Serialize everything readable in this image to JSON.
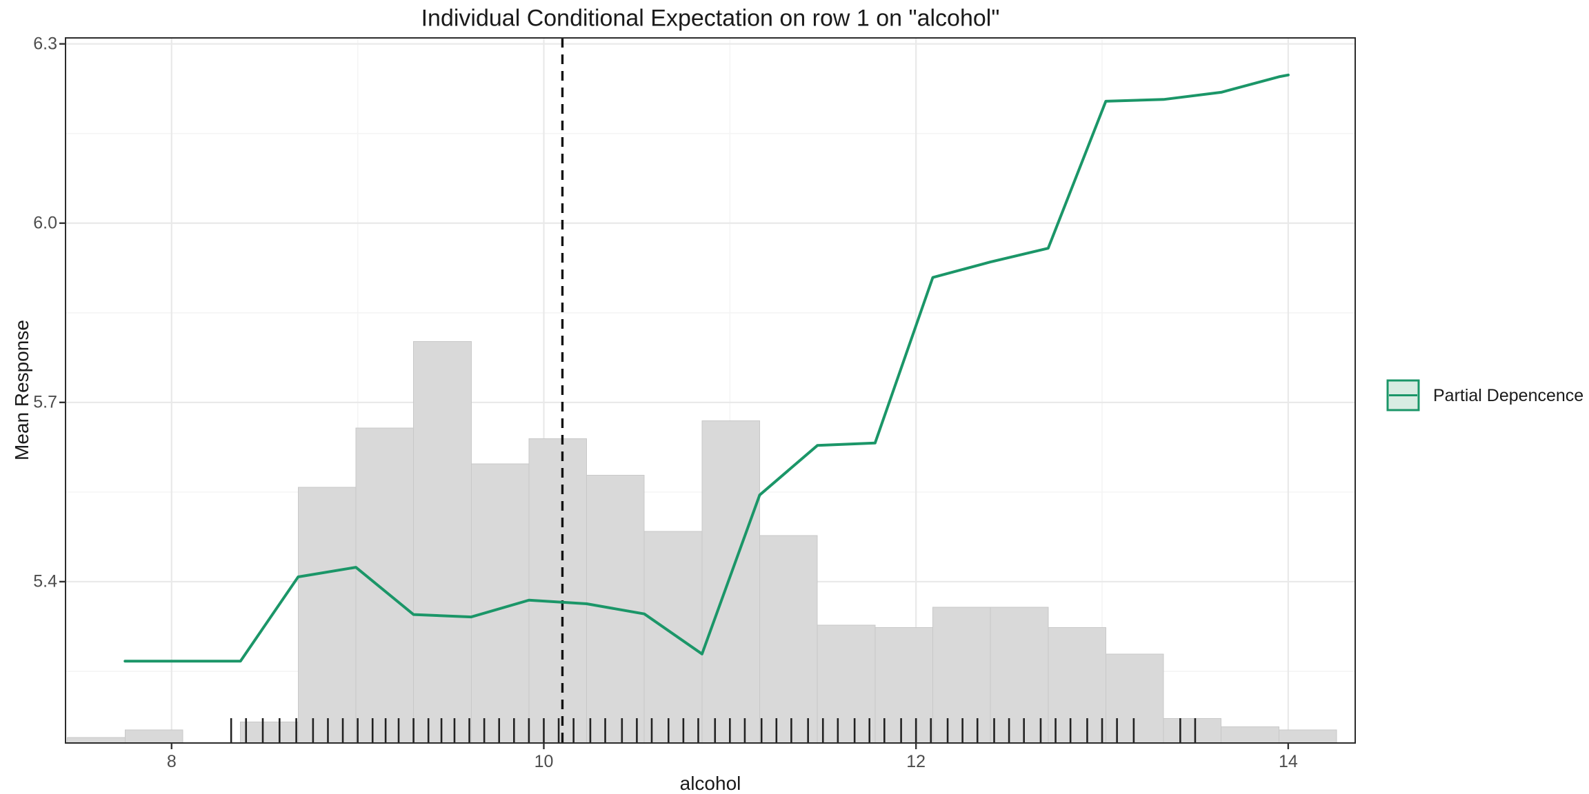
{
  "title": "Individual Conditional Expectation on row 1 on \"alcohol\"",
  "axes": {
    "x": {
      "label": "alcohol",
      "tick_values": [
        8,
        10,
        12,
        14
      ],
      "tick_labels": [
        "8",
        "10",
        "12",
        "14"
      ],
      "minor_ticks": [
        9,
        11,
        13
      ]
    },
    "y": {
      "label": "Mean Response",
      "tick_values": [
        5.4,
        5.7,
        6.0,
        6.3
      ],
      "tick_labels": [
        "5.4",
        "5.7",
        "6.0",
        "6.3"
      ],
      "minor_ticks": [
        5.25,
        5.55,
        5.85,
        6.15
      ]
    }
  },
  "legend": {
    "items": [
      {
        "label": "Partial Depencence",
        "line_color": "#1b9668",
        "fill_color": "#d8ece2"
      }
    ]
  },
  "colors": {
    "pdp_line": "#1b9668",
    "legend_fill": "#d8ece2",
    "histogram_fill": "#d9d9d9",
    "histogram_stroke": "#c8c8c8",
    "grid_major": "#e9e9e9",
    "grid_minor": "#f4f4f4",
    "panel_border": "#2b2b2b",
    "vline": "#111111",
    "rug": "#222222",
    "tick_label": "#4d4d4d",
    "text": "#1a1a1a"
  },
  "chart_data": {
    "type": "line",
    "title": "Individual Conditional Expectation on row 1 on \"alcohol\"",
    "xlabel": "alcohol",
    "ylabel": "Mean Response",
    "xlim": [
      7.43,
      14.36
    ],
    "ylim": [
      5.13,
      6.31
    ],
    "grid": "on",
    "legend_position": "right",
    "vline_observed_x": 10.1,
    "series": [
      {
        "name": "Partial Depencence",
        "x": [
          7.75,
          8.06,
          8.37,
          8.68,
          8.99,
          9.3,
          9.61,
          9.92,
          10.23,
          10.54,
          10.85,
          11.16,
          11.47,
          11.78,
          12.09,
          12.4,
          12.71,
          13.02,
          13.33,
          13.64,
          13.95,
          14.0
        ],
        "y": [
          5.267,
          5.267,
          5.267,
          5.408,
          5.424,
          5.345,
          5.341,
          5.369,
          5.363,
          5.346,
          5.279,
          5.545,
          5.628,
          5.632,
          5.909,
          5.935,
          5.958,
          6.204,
          6.207,
          6.219,
          6.245,
          6.248
        ]
      }
    ],
    "histogram": {
      "note": "feature distribution shown as background bars, bar = [x_start, x_end, top_in_response_units], base at panel bottom",
      "bars": [
        [
          7.44,
          7.75,
          5.139
        ],
        [
          7.75,
          8.06,
          5.152
        ],
        [
          8.37,
          8.68,
          5.165
        ],
        [
          8.68,
          8.99,
          5.558
        ],
        [
          8.99,
          9.3,
          5.657
        ],
        [
          9.3,
          9.61,
          5.802
        ],
        [
          9.61,
          9.92,
          5.597
        ],
        [
          9.92,
          10.23,
          5.639
        ],
        [
          10.23,
          10.54,
          5.578
        ],
        [
          10.54,
          10.85,
          5.484
        ],
        [
          10.85,
          11.16,
          5.669
        ],
        [
          11.16,
          11.47,
          5.477
        ],
        [
          11.47,
          11.78,
          5.327
        ],
        [
          11.78,
          12.09,
          5.323
        ],
        [
          12.09,
          12.4,
          5.357
        ],
        [
          12.4,
          12.71,
          5.357
        ],
        [
          12.71,
          13.02,
          5.323
        ],
        [
          13.02,
          13.33,
          5.279
        ],
        [
          13.33,
          13.64,
          5.171
        ],
        [
          13.64,
          13.95,
          5.157
        ],
        [
          13.95,
          14.26,
          5.152
        ]
      ]
    },
    "rug_x": [
      8.32,
      8.4,
      8.49,
      8.58,
      8.67,
      8.76,
      8.84,
      8.92,
      9.0,
      9.08,
      9.15,
      9.22,
      9.3,
      9.38,
      9.45,
      9.52,
      9.6,
      9.68,
      9.76,
      9.84,
      9.92,
      10.0,
      10.08,
      10.16,
      10.25,
      10.33,
      10.42,
      10.5,
      10.58,
      10.67,
      10.75,
      10.83,
      10.92,
      11.0,
      11.08,
      11.17,
      11.25,
      11.33,
      11.42,
      11.5,
      11.58,
      11.67,
      11.75,
      11.83,
      11.92,
      12.0,
      12.08,
      12.17,
      12.25,
      12.33,
      12.42,
      12.5,
      12.58,
      12.67,
      12.75,
      12.83,
      12.92,
      13.0,
      13.08,
      13.17,
      13.42,
      13.5
    ]
  }
}
